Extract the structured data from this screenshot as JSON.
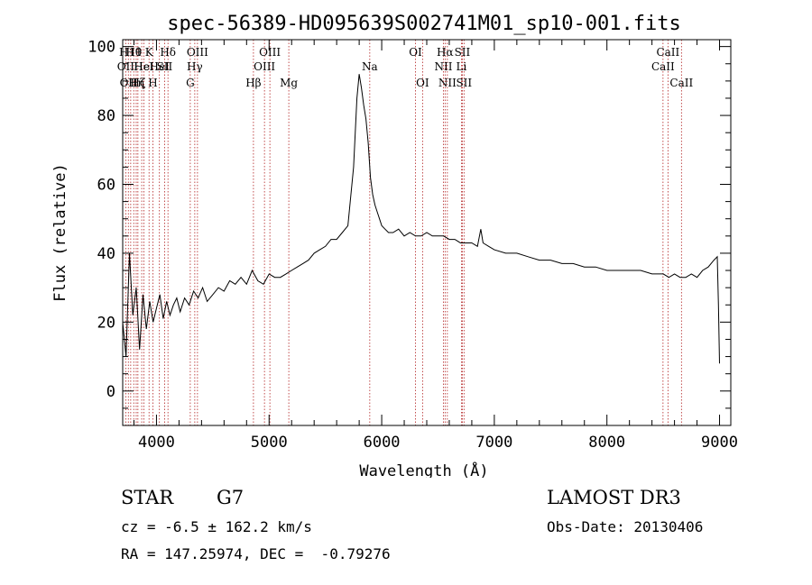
{
  "chart_data": {
    "type": "line",
    "title": "spec-56389-HD095639S002741M01_sp10-001.fits",
    "xlabel": "Wavelength (Å)",
    "ylabel": "Flux (relative)",
    "xlim": [
      3700,
      9100
    ],
    "ylim": [
      -10,
      102
    ],
    "x_ticks": [
      4000,
      5000,
      6000,
      7000,
      8000,
      9000
    ],
    "y_ticks": [
      0,
      20,
      40,
      60,
      80,
      100
    ],
    "x_tick_labels": [
      "4000",
      "5000",
      "6000",
      "7000",
      "8000",
      "9000"
    ],
    "y_tick_labels": [
      "0",
      "20",
      "40",
      "60",
      "80",
      "100"
    ],
    "line_color": "#000000",
    "marker_color": "#b22222",
    "series": [
      {
        "name": "flux",
        "x": [
          3700,
          3730,
          3760,
          3790,
          3820,
          3850,
          3880,
          3910,
          3940,
          3970,
          4000,
          4030,
          4060,
          4090,
          4120,
          4150,
          4180,
          4210,
          4250,
          4290,
          4330,
          4370,
          4410,
          4450,
          4500,
          4550,
          4600,
          4650,
          4700,
          4750,
          4800,
          4850,
          4900,
          4950,
          5000,
          5050,
          5100,
          5150,
          5200,
          5250,
          5300,
          5350,
          5400,
          5450,
          5500,
          5550,
          5600,
          5650,
          5700,
          5750,
          5780,
          5800,
          5820,
          5840,
          5860,
          5880,
          5900,
          5920,
          5940,
          5960,
          5980,
          6000,
          6030,
          6060,
          6100,
          6150,
          6200,
          6250,
          6300,
          6350,
          6400,
          6450,
          6500,
          6550,
          6600,
          6650,
          6700,
          6750,
          6800,
          6850,
          6880,
          6900,
          6950,
          7000,
          7100,
          7200,
          7300,
          7400,
          7500,
          7600,
          7700,
          7800,
          7900,
          8000,
          8100,
          8200,
          8300,
          8400,
          8500,
          8550,
          8600,
          8650,
          8700,
          8750,
          8800,
          8850,
          8900,
          8950,
          8980,
          8990,
          9000
        ],
        "y": [
          20,
          10,
          40,
          22,
          30,
          12,
          28,
          18,
          26,
          20,
          24,
          28,
          21,
          26,
          22,
          25,
          27,
          23,
          27,
          25,
          29,
          27,
          30,
          26,
          28,
          30,
          29,
          32,
          31,
          33,
          31,
          35,
          32,
          31,
          34,
          33,
          33,
          34,
          35,
          36,
          37,
          38,
          40,
          41,
          42,
          44,
          44,
          46,
          48,
          65,
          85,
          92,
          88,
          83,
          79,
          72,
          62,
          57,
          54,
          52,
          50,
          48,
          47,
          46,
          46,
          47,
          45,
          46,
          45,
          45,
          46,
          45,
          45,
          45,
          44,
          44,
          43,
          43,
          43,
          42,
          47,
          43,
          42,
          41,
          40,
          40,
          39,
          38,
          38,
          37,
          37,
          36,
          36,
          35,
          35,
          35,
          35,
          34,
          34,
          33,
          34,
          33,
          33,
          34,
          33,
          35,
          36,
          38,
          39,
          25,
          8
        ]
      }
    ],
    "line_markers": [
      {
        "wl": 3727,
        "label": "OII",
        "row": 2
      },
      {
        "wl": 3750,
        "label": "OII",
        "row": 3
      },
      {
        "wl": 3771,
        "label": "H11",
        "row": 1
      },
      {
        "wl": 3798,
        "label": "Hθ",
        "row": 1
      },
      {
        "wl": 3820,
        "label": "Hη",
        "row": 3
      },
      {
        "wl": 3835,
        "label": "Hζ",
        "row": 3
      },
      {
        "wl": 3869,
        "label": "He",
        "row": 2
      },
      {
        "wl": 3889,
        "label": "HeI",
        "row": 2
      },
      {
        "wl": 3934,
        "label": "K",
        "row": 1
      },
      {
        "wl": 3968,
        "label": "H",
        "row": 3
      },
      {
        "wl": 4026,
        "label": "HeI",
        "row": 2
      },
      {
        "wl": 4072,
        "label": "SII",
        "row": 2
      },
      {
        "wl": 4102,
        "label": "Hδ",
        "row": 1
      },
      {
        "wl": 4300,
        "label": "G",
        "row": 3
      },
      {
        "wl": 4340,
        "label": "Hγ",
        "row": 2
      },
      {
        "wl": 4364,
        "label": "OIII",
        "row": 1
      },
      {
        "wl": 4861,
        "label": "Hβ",
        "row": 3
      },
      {
        "wl": 4959,
        "label": "OIII",
        "row": 2
      },
      {
        "wl": 5007,
        "label": "OIII",
        "row": 1
      },
      {
        "wl": 5175,
        "label": "Mg",
        "row": 3
      },
      {
        "wl": 5894,
        "label": "Na",
        "row": 2
      },
      {
        "wl": 6300,
        "label": "OI",
        "row": 1
      },
      {
        "wl": 6363,
        "label": "OI",
        "row": 3
      },
      {
        "wl": 6548,
        "label": "NII",
        "row": 2
      },
      {
        "wl": 6563,
        "label": "Hα",
        "row": 1
      },
      {
        "wl": 6583,
        "label": "NII",
        "row": 3
      },
      {
        "wl": 6708,
        "label": "Li",
        "row": 2
      },
      {
        "wl": 6716,
        "label": "SII",
        "row": 1
      },
      {
        "wl": 6731,
        "label": "SII",
        "row": 3
      },
      {
        "wl": 8498,
        "label": "CaII",
        "row": 2
      },
      {
        "wl": 8542,
        "label": "CaII",
        "row": 1
      },
      {
        "wl": 8662,
        "label": "CaII",
        "row": 3
      }
    ]
  },
  "info": {
    "object_class": "STAR",
    "subclass": "G7",
    "survey": "LAMOST DR3",
    "cz_line": "cz = -6.5 ± 162.2 km/s",
    "obs_date_line": "Obs-Date: 20130406",
    "radec_line": "RA = 147.25974, DEC =  -0.79276"
  }
}
